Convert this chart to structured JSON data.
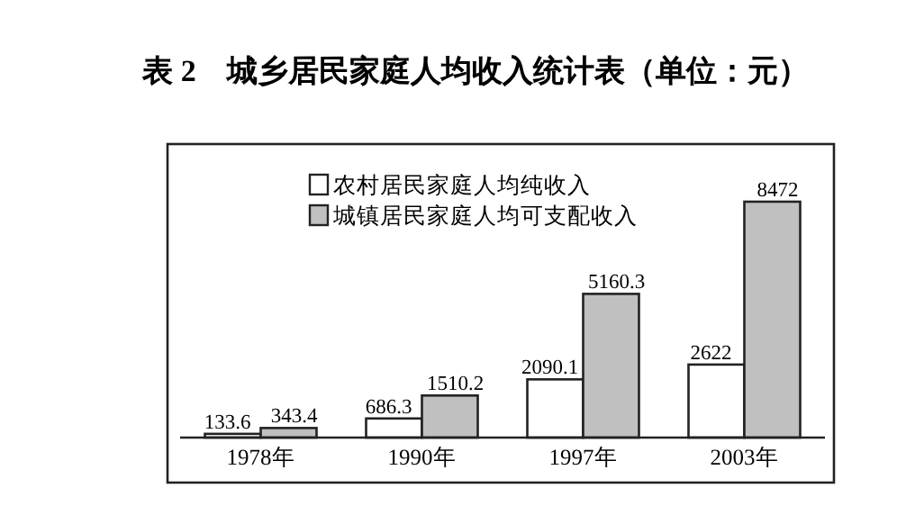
{
  "chart_data": {
    "type": "bar",
    "title": "表 2　城乡居民家庭人均收入统计表（单位：元）",
    "categories": [
      "1978年",
      "1990年",
      "1997年",
      "2003年"
    ],
    "series": [
      {
        "name": "农村居民家庭人均纯收入",
        "color": "#ffffff",
        "values": [
          133.6,
          686.3,
          2090.1,
          2622
        ]
      },
      {
        "name": "城镇居民家庭人均可支配收入",
        "color": "#c0c0c0",
        "values": [
          343.4,
          1510.2,
          5160.3,
          8472
        ]
      }
    ],
    "data_labels": true,
    "legend": "top right"
  }
}
